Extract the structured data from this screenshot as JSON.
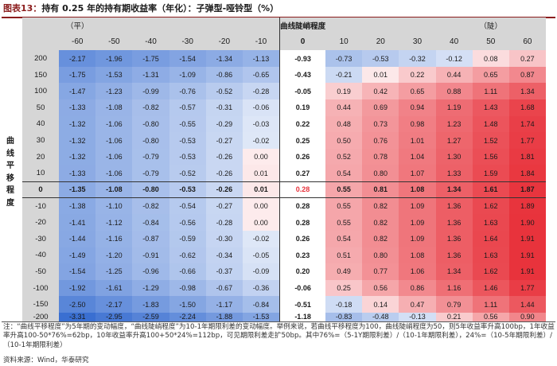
{
  "title": {
    "label": "图表13：",
    "text": "持有 0.25 年的持有期收益率（年化）：子弹型-哑铃型（%）"
  },
  "header": {
    "left_corner": "（平）",
    "center": "曲线陡峭程度",
    "right_corner": "（陡）"
  },
  "row_axis_label": [
    "曲",
    "线",
    "平",
    "移",
    "程",
    "度"
  ],
  "colors": {
    "negative_scale": "#3a6fd1",
    "positive_scale": "#e8333c",
    "zero_highlight_text": "#e8333c",
    "header_band": "#d6d6d6",
    "title_accent": "#8b1c1c"
  },
  "table": {
    "columns": [
      "-60",
      "-50",
      "-40",
      "-30",
      "-20",
      "-10",
      "0",
      "10",
      "20",
      "30",
      "40",
      "50",
      "60"
    ],
    "rows": [
      {
        "label": "200",
        "values": [
          "-2.17",
          "-1.96",
          "-1.75",
          "-1.54",
          "-1.34",
          "-1.13",
          "-0.93",
          "-0.73",
          "-0.53",
          "-0.32",
          "-0.12",
          "0.08",
          "0.27"
        ]
      },
      {
        "label": "150",
        "values": [
          "-1.75",
          "-1.53",
          "-1.31",
          "-1.09",
          "-0.86",
          "-0.65",
          "-0.43",
          "-0.21",
          "0.01",
          "0.22",
          "0.44",
          "0.65",
          "0.87"
        ]
      },
      {
        "label": "100",
        "values": [
          "-1.47",
          "-1.23",
          "-0.99",
          "-0.76",
          "-0.52",
          "-0.28",
          "-0.05",
          "0.19",
          "0.42",
          "0.65",
          "0.88",
          "1.11",
          "1.34"
        ]
      },
      {
        "label": "50",
        "values": [
          "-1.33",
          "-1.08",
          "-0.82",
          "-0.57",
          "-0.31",
          "-0.06",
          "0.19",
          "0.44",
          "0.69",
          "0.94",
          "1.19",
          "1.43",
          "1.68"
        ]
      },
      {
        "label": "40",
        "values": [
          "-1.32",
          "-1.06",
          "-0.80",
          "-0.55",
          "-0.29",
          "-0.03",
          "0.22",
          "0.48",
          "0.73",
          "0.98",
          "1.23",
          "1.48",
          "1.74"
        ]
      },
      {
        "label": "30",
        "values": [
          "-1.32",
          "-1.06",
          "-0.80",
          "-0.53",
          "-0.27",
          "-0.02",
          "0.25",
          "0.50",
          "0.76",
          "1.01",
          "1.27",
          "1.52",
          "1.77"
        ]
      },
      {
        "label": "20",
        "values": [
          "-1.32",
          "-1.06",
          "-0.79",
          "-0.53",
          "-0.26",
          "0.00",
          "0.26",
          "0.52",
          "0.78",
          "1.04",
          "1.30",
          "1.56",
          "1.81"
        ]
      },
      {
        "label": "10",
        "values": [
          "-1.33",
          "-1.06",
          "-0.79",
          "-0.52",
          "-0.26",
          "0.01",
          "0.27",
          "0.54",
          "0.80",
          "1.07",
          "1.33",
          "1.59",
          "1.84"
        ]
      },
      {
        "label": "0",
        "values": [
          "-1.35",
          "-1.08",
          "-0.80",
          "-0.53",
          "-0.26",
          "0.01",
          "0.28",
          "0.55",
          "0.81",
          "1.08",
          "1.34",
          "1.61",
          "1.87"
        ]
      },
      {
        "label": "-10",
        "values": [
          "-1.38",
          "-1.10",
          "-0.82",
          "-0.54",
          "-0.27",
          "0.00",
          "0.28",
          "0.55",
          "0.82",
          "1.09",
          "1.36",
          "1.62",
          "1.89"
        ]
      },
      {
        "label": "-20",
        "values": [
          "-1.41",
          "-1.12",
          "-0.84",
          "-0.56",
          "-0.28",
          "0.00",
          "0.28",
          "0.55",
          "0.82",
          "1.09",
          "1.36",
          "1.63",
          "1.90"
        ]
      },
      {
        "label": "-30",
        "values": [
          "-1.44",
          "-1.16",
          "-0.87",
          "-0.59",
          "-0.30",
          "-0.02",
          "0.26",
          "0.54",
          "0.82",
          "1.09",
          "1.36",
          "1.64",
          "1.91"
        ]
      },
      {
        "label": "-40",
        "values": [
          "-1.49",
          "-1.20",
          "-0.91",
          "-0.62",
          "-0.34",
          "-0.05",
          "0.23",
          "0.51",
          "0.80",
          "1.08",
          "1.36",
          "1.63",
          "1.91"
        ]
      },
      {
        "label": "-50",
        "values": [
          "-1.54",
          "-1.25",
          "-0.96",
          "-0.66",
          "-0.37",
          "-0.09",
          "0.20",
          "0.49",
          "0.77",
          "1.06",
          "1.34",
          "1.62",
          "1.91"
        ]
      },
      {
        "label": "-100",
        "values": [
          "-1.92",
          "-1.61",
          "-1.29",
          "-0.98",
          "-0.67",
          "-0.36",
          "-0.06",
          "0.25",
          "0.56",
          "0.86",
          "1.16",
          "1.46",
          "1.77"
        ]
      },
      {
        "label": "-150",
        "values": [
          "-2.50",
          "-2.17",
          "-1.83",
          "-1.50",
          "-1.17",
          "-0.84",
          "-0.51",
          "-0.18",
          "0.14",
          "0.47",
          "0.79",
          "1.11",
          "1.44"
        ]
      },
      {
        "label": "-200",
        "values": [
          "-3.31",
          "-2.95",
          "-2.59",
          "-2.24",
          "-1.88",
          "-1.53",
          "-1.18",
          "-0.83",
          "-0.48",
          "-0.13",
          "0.21",
          "0.56",
          "0.90"
        ]
      }
    ]
  },
  "note": "注：“曲线平移程度”为5年期的变动幅度，“曲线陡峭程度”为10-1年期限利差的变动幅度。举例来说，若曲线平移程度为100，曲线陡峭程度为50，则5年收益率升高100bp，1年收益率升高100-50*76%=62bp，10年收益率升高100+50*24%=112bp，可见期限利差走扩50bp。其中76%=（5-1Y期限利差）/（10-1年期限利差），24%=（10-5年期限利差）/（10-1年期限利差）",
  "source": "资料来源：Wind，华泰研究"
}
